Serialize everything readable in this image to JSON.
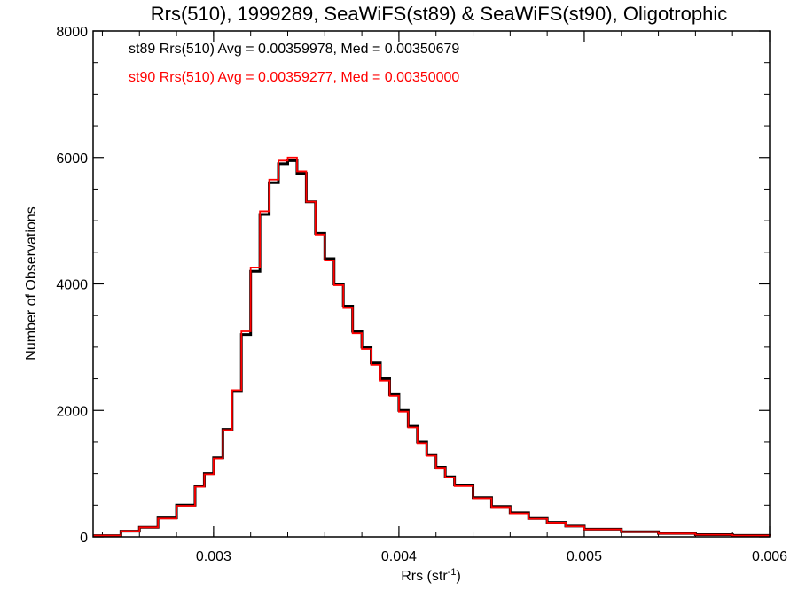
{
  "chart_data": {
    "type": "line",
    "title": "Rrs(510), 1999289, SeaWiFS(st89) & SeaWiFS(st90), Oligotrophic",
    "xlabel": "Rrs (str",
    "xlabel_sup": "-1",
    "xlabel_end": ")",
    "ylabel": "Number of Observations",
    "xlim": [
      0.00235,
      0.006
    ],
    "ylim": [
      0,
      8000
    ],
    "grid": false,
    "x_ticks": [
      {
        "value": 0.003,
        "label": "0.003"
      },
      {
        "value": 0.004,
        "label": "0.004"
      },
      {
        "value": 0.005,
        "label": "0.005"
      },
      {
        "value": 0.006,
        "label": "0.006"
      }
    ],
    "y_ticks": [
      {
        "value": 0,
        "label": "0"
      },
      {
        "value": 2000,
        "label": "2000"
      },
      {
        "value": 4000,
        "label": "4000"
      },
      {
        "value": 6000,
        "label": "6000"
      },
      {
        "value": 8000,
        "label": "8000"
      }
    ],
    "annotations": [
      {
        "text": "st89 Rrs(510) Avg = 0.00359978, Med = 0.00350679",
        "color": "#000000"
      },
      {
        "text": "st90 Rrs(510) Avg = 0.00359277, Med = 0.00350000",
        "color": "#ff0000"
      }
    ],
    "x": [
      0.00235,
      0.0025,
      0.0026,
      0.0027,
      0.0028,
      0.0029,
      0.00295,
      0.003,
      0.00305,
      0.0031,
      0.00315,
      0.0032,
      0.00325,
      0.0033,
      0.00335,
      0.0034,
      0.00345,
      0.0035,
      0.00355,
      0.0036,
      0.00365,
      0.0037,
      0.00375,
      0.0038,
      0.00385,
      0.0039,
      0.00395,
      0.004,
      0.00405,
      0.0041,
      0.00415,
      0.0042,
      0.00425,
      0.0043,
      0.0044,
      0.0045,
      0.0046,
      0.0047,
      0.0048,
      0.0049,
      0.005,
      0.0052,
      0.0054,
      0.0056,
      0.0058,
      0.006
    ],
    "series": [
      {
        "name": "st89",
        "color": "#000000",
        "values": [
          20,
          90,
          150,
          300,
          500,
          800,
          1000,
          1250,
          1700,
          2300,
          3200,
          4200,
          5100,
          5600,
          5900,
          5950,
          5750,
          5300,
          4800,
          4400,
          4000,
          3650,
          3250,
          3000,
          2750,
          2500,
          2250,
          2000,
          1750,
          1500,
          1300,
          1100,
          950,
          820,
          620,
          480,
          380,
          290,
          230,
          170,
          120,
          80,
          55,
          35,
          22,
          12
        ]
      },
      {
        "name": "st90",
        "color": "#ff0000",
        "values": [
          20,
          90,
          150,
          290,
          490,
          790,
          990,
          1240,
          1690,
          2320,
          3250,
          4260,
          5150,
          5650,
          5950,
          6000,
          5780,
          5300,
          4780,
          4370,
          3980,
          3620,
          3220,
          2970,
          2720,
          2470,
          2230,
          1980,
          1730,
          1480,
          1280,
          1090,
          940,
          800,
          610,
          470,
          370,
          285,
          225,
          165,
          118,
          78,
          52,
          33,
          20,
          10
        ]
      }
    ]
  }
}
